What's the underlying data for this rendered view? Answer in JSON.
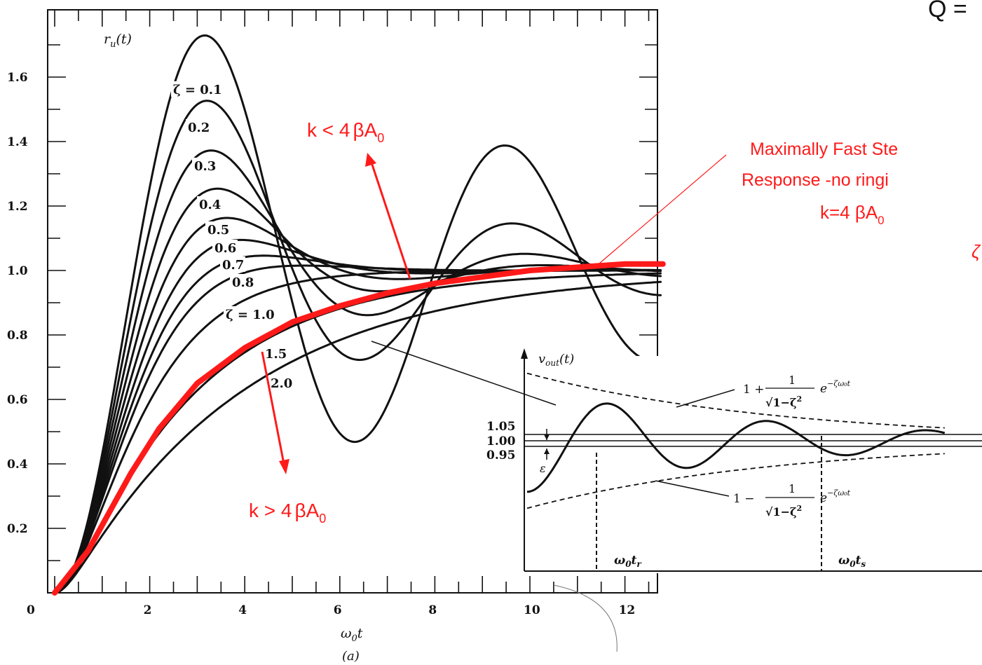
{
  "chart_data": [
    {
      "type": "line",
      "title": "",
      "ylabel": "r_u(t)",
      "xlabel": "ω0t",
      "caption": "(a)",
      "xlim": [
        0,
        12.8
      ],
      "ylim": [
        0,
        1.8
      ],
      "x_ticks": [
        "0",
        "2",
        "4",
        "6",
        "8",
        "10",
        "12"
      ],
      "y_ticks": [
        "0.2",
        "0.4",
        "0.6",
        "0.8",
        "1.0",
        "1.2",
        "1.4",
        "1.6"
      ],
      "zeta_values": [
        0.1,
        0.2,
        0.3,
        0.4,
        0.5,
        0.6,
        0.7,
        0.8,
        1.0,
        1.5,
        2.0
      ],
      "curve_labels": [
        "ζ = 0.1",
        "0.2",
        "0.3",
        "0.4",
        "0.5",
        "0.6",
        "0.7",
        "0.8",
        "ζ = 1.0",
        "1.5",
        "2.0"
      ],
      "highlight": {
        "color": "#ff1a1a",
        "points": [
          [
            0,
            0
          ],
          [
            0.7,
            0.13
          ],
          [
            1.6,
            0.37
          ],
          [
            2.2,
            0.51
          ],
          [
            3.0,
            0.65
          ],
          [
            4.0,
            0.76
          ],
          [
            5.0,
            0.84
          ],
          [
            6.0,
            0.89
          ],
          [
            7.0,
            0.93
          ],
          [
            8.0,
            0.96
          ],
          [
            9.0,
            0.98
          ],
          [
            10.0,
            1.0
          ],
          [
            11.0,
            1.01
          ],
          [
            12.0,
            1.02
          ],
          [
            12.8,
            1.02
          ]
        ]
      }
    },
    {
      "type": "line",
      "ylabel": "v_out(t)",
      "levels": [
        "1.05",
        "1.00",
        "0.95"
      ],
      "epsilon": "ε",
      "upper_envelope": "1 + 1/√(1−ζ²) e^(−ζω0t)",
      "lower_envelope": "1 − 1/√(1−ζ²) e^(−ζω0t)",
      "rise_time_label": "ω0tr",
      "settling_time_label": "ω0ts"
    }
  ],
  "annotations": {
    "top_right_fragment": "Q =",
    "k_less": "k < 4βA0",
    "k_greater": "k > 4βA0",
    "max_fast_line1": "Maximally Fast Ste",
    "max_fast_line2": "Response -no ringi",
    "k_equal": "k=4 βA0",
    "zeta_fragment": "ζ"
  },
  "colors": {
    "highlight": "#ff1a1a",
    "ink": "#111111"
  }
}
